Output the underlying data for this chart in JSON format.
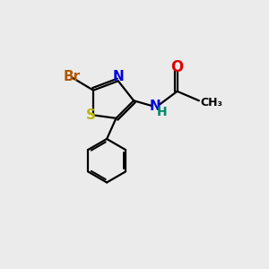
{
  "bg_color": "#ebebeb",
  "atom_colors": {
    "Br": "#b05800",
    "S": "#b8b800",
    "N": "#0000dd",
    "O": "#dd0000",
    "NH": "#008866",
    "C": "#000000"
  },
  "bond_color": "#000000",
  "bond_width": 1.6
}
